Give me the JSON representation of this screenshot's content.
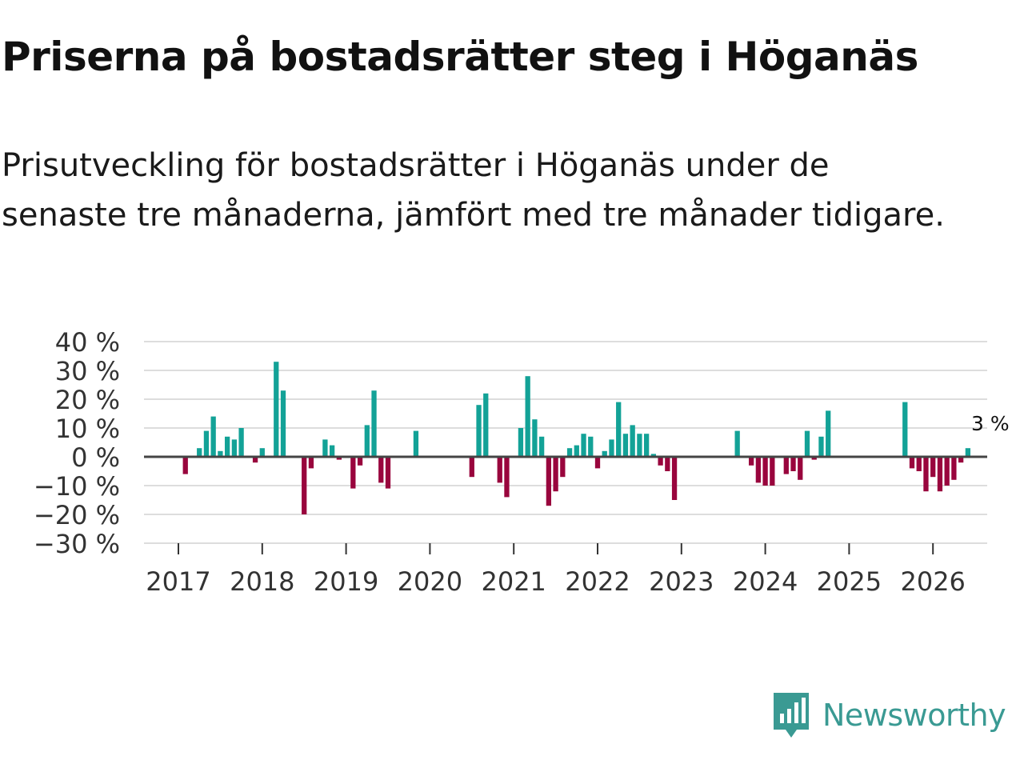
{
  "title": "Priserna på bostadsrätter steg i Höganäs",
  "subtitle": "Prisutveckling för bostadsrätter i Höganäs under de senaste tre månaderna, jämfört med tre månader tidigare.",
  "brand": {
    "name": "Newsworthy",
    "icon": "newsworthy-logo-icon"
  },
  "colors": {
    "positive": "#13a297",
    "negative": "#99053d",
    "grid": "#dddddd",
    "zero": "#444444",
    "brand": "#3a9a93"
  },
  "chart_data": {
    "type": "bar",
    "title": "Priserna på bostadsrätter steg i Höganäs",
    "xlabel": "",
    "ylabel": "",
    "ylim": [
      -30,
      40
    ],
    "yticks": [
      40,
      30,
      20,
      10,
      0,
      -10,
      -20,
      -30
    ],
    "ytick_labels": [
      "40 %",
      "30 %",
      "20 %",
      "10 %",
      "0 %",
      "−10 %",
      "−20 %",
      "−30 %"
    ],
    "xticks": [
      "2017",
      "2018",
      "2019",
      "2020",
      "2021",
      "2022",
      "2023",
      "2024",
      "2025",
      "2026"
    ],
    "start": "2017-01",
    "values": [
      0,
      -6,
      0,
      3,
      9,
      14,
      2,
      7,
      6,
      10,
      0,
      -2,
      3,
      0,
      33,
      23,
      0,
      0,
      -20,
      -4,
      0,
      6,
      4,
      -1,
      0,
      -11,
      -3,
      11,
      23,
      -9,
      -11,
      0,
      0,
      0,
      9,
      0,
      0,
      0,
      0,
      0,
      0,
      0,
      -7,
      18,
      22,
      0,
      -9,
      -14,
      0,
      10,
      28,
      13,
      7,
      -17,
      -12,
      -7,
      3,
      4,
      8,
      7,
      -4,
      2,
      6,
      19,
      8,
      11,
      8,
      8,
      1,
      -3,
      -5,
      -15,
      0,
      0,
      0,
      0,
      0,
      0,
      0,
      0,
      9,
      0,
      -3,
      -9,
      -10,
      -10,
      0,
      -6,
      -5,
      -8,
      9,
      -1,
      7,
      16,
      0,
      0,
      0,
      0,
      0,
      0,
      0,
      0,
      0,
      0,
      19,
      -4,
      -5,
      -12,
      -7,
      -12,
      -10,
      -8,
      -2,
      3
    ],
    "last_label": "3 %"
  }
}
